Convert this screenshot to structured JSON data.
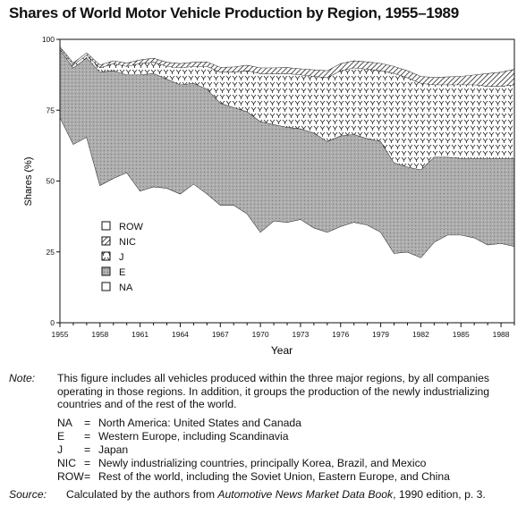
{
  "chart_data": {
    "type": "area",
    "title": "Shares of World Motor Vehicle Production by Region, 1955–1989",
    "xlabel": "Year",
    "ylabel": "Shares (%)",
    "x": [
      1955,
      1956,
      1957,
      1958,
      1959,
      1960,
      1961,
      1962,
      1963,
      1964,
      1965,
      1966,
      1967,
      1968,
      1969,
      1970,
      1971,
      1972,
      1973,
      1974,
      1975,
      1976,
      1977,
      1978,
      1979,
      1980,
      1981,
      1982,
      1983,
      1984,
      1985,
      1986,
      1987,
      1988,
      1989
    ],
    "xticks": [
      1955,
      1958,
      1961,
      1964,
      1967,
      1970,
      1973,
      1976,
      1979,
      1982,
      1985,
      1988
    ],
    "yticks": [
      0,
      25,
      50,
      75,
      100
    ],
    "ylim": [
      0,
      100
    ],
    "stacking": "cumulative boundaries, bottom to top: NA, E, J, NIC, ROW",
    "series": [
      {
        "name": "NA",
        "pattern": "blank",
        "values": [
          72.5,
          63.0,
          65.5,
          48.5,
          51.0,
          53.0,
          46.5,
          48.0,
          47.5,
          45.5,
          49.0,
          45.5,
          41.5,
          41.5,
          38.5,
          32.0,
          36.0,
          35.5,
          36.5,
          33.5,
          32.0,
          34.0,
          35.5,
          34.5,
          32.0,
          24.5,
          25.0,
          23.0,
          28.5,
          31.0,
          31.0,
          30.0,
          27.5,
          28.0,
          27.0
        ]
      },
      {
        "name": "E",
        "pattern": "dot-stipple",
        "values": [
          24.0,
          27.0,
          28.0,
          40.0,
          38.0,
          34.5,
          41.0,
          40.0,
          38.5,
          38.5,
          35.5,
          37.0,
          36.0,
          34.5,
          36.0,
          39.0,
          34.0,
          33.5,
          32.0,
          33.5,
          32.0,
          32.0,
          31.0,
          30.5,
          32.0,
          32.0,
          30.0,
          31.0,
          30.0,
          27.5,
          27.0,
          28.0,
          30.5,
          30.0,
          31.0
        ]
      },
      {
        "name": "J",
        "pattern": "crosshatch",
        "values": [
          0.5,
          1.0,
          1.0,
          1.5,
          2.5,
          3.0,
          4.0,
          4.0,
          4.5,
          6.0,
          6.0,
          8.0,
          11.0,
          12.5,
          14.5,
          17.0,
          18.0,
          19.0,
          19.0,
          20.0,
          22.5,
          23.0,
          23.5,
          24.5,
          25.0,
          31.5,
          31.5,
          30.5,
          25.5,
          25.5,
          26.0,
          26.0,
          25.5,
          25.5,
          26.0
        ]
      },
      {
        "name": "NIC",
        "pattern": "diagonal-hatch",
        "values": [
          0.5,
          0.8,
          0.8,
          1.0,
          1.0,
          1.2,
          1.3,
          1.4,
          1.5,
          1.5,
          1.5,
          1.6,
          1.7,
          1.8,
          1.9,
          2.0,
          2.0,
          2.1,
          2.2,
          2.3,
          2.5,
          2.5,
          2.5,
          2.6,
          2.6,
          2.5,
          2.5,
          2.5,
          2.6,
          2.8,
          3.0,
          3.5,
          4.5,
          5.0,
          5.5
        ]
      },
      {
        "name": "ROW",
        "pattern": "blank",
        "values": [
          2.5,
          8.2,
          4.7,
          9.0,
          7.5,
          8.3,
          7.2,
          6.6,
          8.0,
          8.5,
          8.0,
          7.9,
          9.8,
          9.7,
          9.1,
          10.0,
          10.0,
          9.9,
          10.3,
          10.7,
          11.0,
          8.5,
          7.5,
          7.9,
          8.4,
          9.5,
          11.0,
          13.0,
          13.4,
          13.2,
          13.0,
          12.5,
          12.0,
          11.5,
          10.5
        ]
      }
    ],
    "legend": {
      "placement": "lower-left, inside plot area",
      "entries": [
        "ROW",
        "NIC",
        "J",
        "E",
        "NA"
      ]
    }
  },
  "notes": {
    "note_label": "Note:",
    "note_text": "This figure includes all vehicles produced within the three major regions, by all companies operating in those regions. In addition, it groups the production of the newly industrializing countries and of the rest of the world.",
    "eq": "=",
    "abbreviations": [
      {
        "key": "NA",
        "definition": "North America: United States and Canada"
      },
      {
        "key": "E",
        "definition": "Western Europe, including Scandinavia"
      },
      {
        "key": "J",
        "definition": "Japan"
      },
      {
        "key": "NIC",
        "definition": "Newly industrializing countries, principally Korea, Brazil, and Mexico"
      },
      {
        "key": "ROW",
        "definition": "Rest of the world, including the Soviet Union, Eastern Europe, and China"
      }
    ],
    "source_label": "Source:",
    "source_prefix": "Calculated by the authors from ",
    "source_title": "Automotive News Market Data Book",
    "source_suffix": ", 1990 edition, p. 3."
  },
  "colors": {
    "ink": "#111111",
    "e_fill": "#aaaaaa",
    "background": "#ffffff"
  }
}
